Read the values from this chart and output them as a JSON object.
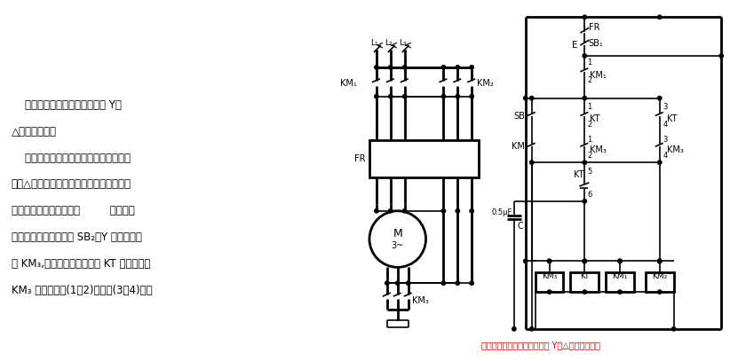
{
  "caption": "防止接触器触点间飞弧短路的 Y－△降压启动电路",
  "caption_color": "#cc0000",
  "bg_color": "#ffffff",
  "line_color": "#000000",
  "text_color": "#000000",
  "left_text_lines": [
    "    防止接触器触点间飞弧短路的 Y－",
    "△降压启动电路",
    "    从产生飞弧短路的主要原因看，只要能",
    "推迟△接法的接触器的吸合时同，就能避免",
    "飞弧短路。为此可采用图         所示的控",
    "制电路。按下启动按钮 SB₂，Y 接法的接触",
    "器 KM₃,通电延时时间继电器 KT 得电吸合，",
    "KM₃ 的辅助触点(1－2)闭合、(3－4)断开"
  ]
}
